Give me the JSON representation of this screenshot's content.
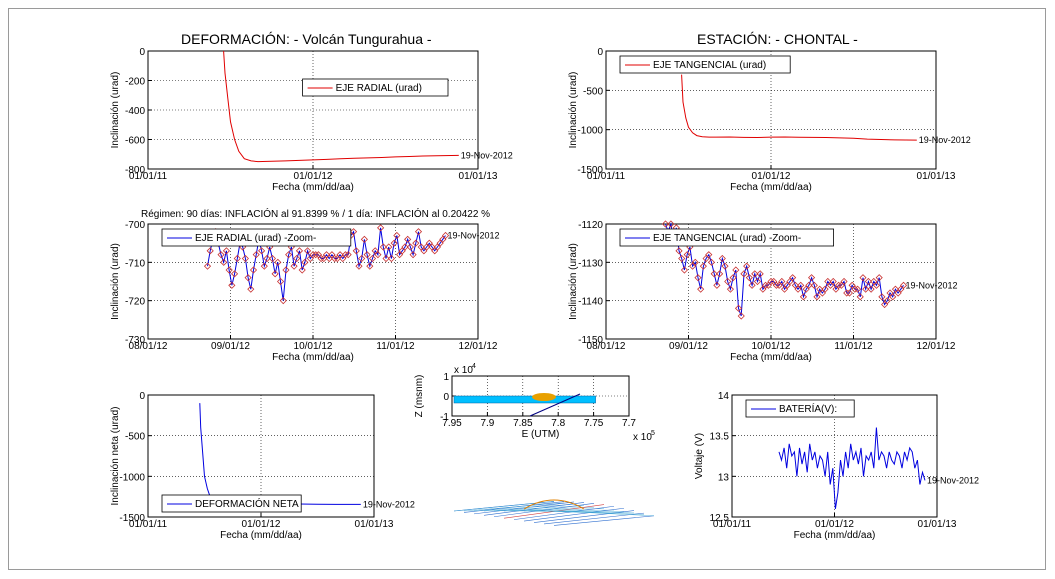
{
  "titles": {
    "left": "DEFORMACIÓN: - Volcán Tungurahua -",
    "right": "ESTACIÓN: - CHONTAL -",
    "regimen": "Régimen: 90 días: INFLACIÓN al 91.8399 % / 1 día: INFLACIÓN al 0.20422 %"
  },
  "colors": {
    "red": "#e00000",
    "blue": "#0000e0",
    "marker": "#c83232",
    "grid": "#000000"
  },
  "chart_data": [
    {
      "id": "radial",
      "type": "line",
      "xlabel": "Fecha (mm/dd/aa)",
      "ylabel": "Inclinación (urad)",
      "xticks": [
        "01/01/11",
        "01/01/12",
        "01/01/13"
      ],
      "yticks": [
        0,
        -200,
        -400,
        -600,
        -800
      ],
      "xlim": [
        0,
        24
      ],
      "ylim": [
        -800,
        0
      ],
      "grid": true,
      "legend": "EJE RADIAL (urad)",
      "legend_position": "top-right",
      "end_label": "19-Nov-2012",
      "series": [
        {
          "color": "red",
          "x": [
            5.5,
            5.6,
            5.8,
            6.0,
            6.3,
            6.6,
            7.0,
            7.5,
            8.0,
            9,
            10,
            11,
            12,
            13,
            14,
            15,
            16,
            17,
            18,
            19,
            20,
            21,
            22.6
          ],
          "y": [
            0,
            -150,
            -320,
            -480,
            -600,
            -680,
            -730,
            -745,
            -750,
            -748,
            -745,
            -742,
            -738,
            -735,
            -730,
            -727,
            -725,
            -722,
            -718,
            -715,
            -712,
            -710,
            -708
          ]
        }
      ]
    },
    {
      "id": "tangencial",
      "type": "line",
      "xlabel": "Fecha (mm/dd/aa)",
      "ylabel": "Inclinación (urad)",
      "xticks": [
        "01/01/11",
        "01/01/12",
        "01/01/13"
      ],
      "yticks": [
        0,
        -500,
        -1000,
        -1500
      ],
      "xlim": [
        0,
        24
      ],
      "ylim": [
        -1500,
        0
      ],
      "grid": true,
      "legend": "EJE TANGENCIAL (urad)",
      "legend_position": "top-left",
      "end_label": "19-Nov-2012",
      "series": [
        {
          "color": "red",
          "x": [
            5.5,
            5.6,
            5.8,
            6.0,
            6.3,
            6.6,
            7.0,
            7.5,
            8.0,
            9,
            10,
            11,
            12,
            13,
            14,
            15,
            16,
            17,
            18,
            19,
            20,
            21,
            22.6
          ],
          "y": [
            -300,
            -650,
            -850,
            -970,
            -1040,
            -1075,
            -1090,
            -1095,
            -1095,
            -1093,
            -1098,
            -1100,
            -1095,
            -1093,
            -1097,
            -1098,
            -1100,
            -1105,
            -1110,
            -1120,
            -1125,
            -1130,
            -1132
          ]
        }
      ]
    },
    {
      "id": "radial_zoom",
      "type": "line",
      "xlabel": "Fecha (mm/dd/aa)",
      "ylabel": "Inclinación (urad)",
      "xticks": [
        "08/01/12",
        "09/01/12",
        "10/01/12",
        "11/01/12",
        "12/01/12"
      ],
      "yticks": [
        -700,
        -710,
        -720,
        -730
      ],
      "xlim": [
        0,
        122
      ],
      "ylim": [
        -730,
        -700
      ],
      "grid": true,
      "legend": "EJE RADIAL (urad) -Zoom-",
      "legend_position": "top-left",
      "end_label": "19-Nov-2012",
      "series": [
        {
          "color": "blue",
          "markers": true,
          "x": [
            22,
            23,
            24,
            25,
            26,
            27,
            28,
            29,
            30,
            31,
            32,
            33,
            34,
            35,
            36,
            37,
            38,
            39,
            40,
            41,
            42,
            43,
            44,
            45,
            46,
            47,
            48,
            49,
            50,
            51,
            52,
            53,
            54,
            55,
            56,
            57,
            58,
            59,
            60,
            61,
            62,
            63,
            64,
            65,
            66,
            67,
            68,
            69,
            70,
            71,
            72,
            73,
            74,
            75,
            76,
            77,
            78,
            79,
            80,
            81,
            82,
            83,
            84,
            85,
            86,
            87,
            88,
            89,
            90,
            91,
            92,
            93,
            94,
            95,
            96,
            97,
            98,
            99,
            100,
            101,
            102,
            103,
            104,
            105,
            106,
            107,
            108,
            109,
            110
          ],
          "y": [
            -711,
            -707,
            -704,
            -702,
            -705,
            -708,
            -710,
            -707,
            -712,
            -716,
            -713,
            -709,
            -705,
            -706,
            -709,
            -714,
            -717,
            -712,
            -708,
            -704,
            -707,
            -711,
            -709,
            -706,
            -709,
            -713,
            -710,
            -715,
            -720,
            -712,
            -708,
            -706,
            -711,
            -709,
            -707,
            -712,
            -710,
            -707,
            -709,
            -708,
            -708,
            -708,
            -709,
            -709,
            -708,
            -709,
            -708,
            -709,
            -709,
            -708,
            -709,
            -708,
            -708,
            -703,
            -702,
            -707,
            -711,
            -709,
            -704,
            -708,
            -711,
            -709,
            -707,
            -708,
            -701,
            -706,
            -709,
            -706,
            -709,
            -705,
            -703,
            -708,
            -707,
            -706,
            -704,
            -706,
            -708,
            -705,
            -702,
            -706,
            -707,
            -706,
            -705,
            -706,
            -707,
            -706,
            -705,
            -704,
            -703
          ]
        }
      ]
    },
    {
      "id": "tangencial_zoom",
      "type": "line",
      "xlabel": "Fecha (mm/dd/aa)",
      "ylabel": "Inclinación (urad)",
      "xticks": [
        "08/01/12",
        "09/01/12",
        "10/01/12",
        "11/01/12",
        "12/01/12"
      ],
      "yticks": [
        -1120,
        -1130,
        -1140,
        -1150
      ],
      "xlim": [
        0,
        122
      ],
      "ylim": [
        -1150,
        -1120
      ],
      "grid": true,
      "legend": "EJE TANGENCIAL (urad) -Zoom-",
      "legend_position": "top-left",
      "end_label": "19-Nov-2012",
      "series": [
        {
          "color": "blue",
          "markers": true,
          "x": [
            22,
            23,
            24,
            25,
            26,
            27,
            28,
            29,
            30,
            31,
            32,
            33,
            34,
            35,
            36,
            37,
            38,
            39,
            40,
            41,
            42,
            43,
            44,
            45,
            46,
            47,
            48,
            49,
            50,
            51,
            52,
            53,
            54,
            55,
            56,
            57,
            58,
            59,
            60,
            61,
            62,
            63,
            64,
            65,
            66,
            67,
            68,
            69,
            70,
            71,
            72,
            73,
            74,
            75,
            76,
            77,
            78,
            79,
            80,
            81,
            82,
            83,
            84,
            85,
            86,
            87,
            88,
            89,
            90,
            91,
            92,
            93,
            94,
            95,
            96,
            97,
            98,
            99,
            100,
            101,
            102,
            103,
            104,
            105,
            106,
            107,
            108,
            109,
            110
          ],
          "y": [
            -1120,
            -1122,
            -1120,
            -1124,
            -1121,
            -1127,
            -1129,
            -1132,
            -1128,
            -1126,
            -1131,
            -1130,
            -1134,
            -1137,
            -1131,
            -1129,
            -1128,
            -1130,
            -1133,
            -1136,
            -1133,
            -1129,
            -1131,
            -1135,
            -1137,
            -1134,
            -1132,
            -1142,
            -1144,
            -1133,
            -1131,
            -1134,
            -1136,
            -1133,
            -1135,
            -1133,
            -1137,
            -1136,
            -1136,
            -1135,
            -1135,
            -1136,
            -1136,
            -1135,
            -1137,
            -1136,
            -1135,
            -1134,
            -1136,
            -1137,
            -1136,
            -1139,
            -1137,
            -1136,
            -1134,
            -1136,
            -1139,
            -1137,
            -1138,
            -1137,
            -1135,
            -1136,
            -1135,
            -1137,
            -1136,
            -1136,
            -1135,
            -1138,
            -1138,
            -1136,
            -1137,
            -1137,
            -1139,
            -1134,
            -1137,
            -1135,
            -1137,
            -1135,
            -1136,
            -1134,
            -1139,
            -1141,
            -1140,
            -1138,
            -1139,
            -1137,
            -1138,
            -1137,
            -1136
          ]
        }
      ]
    },
    {
      "id": "deformacion_neta",
      "type": "line",
      "xlabel": "Fecha (mm/dd/aa)",
      "ylabel": "Inclinación neta (urad)",
      "xticks": [
        "01/01/11",
        "01/01/12",
        "01/01/13"
      ],
      "yticks": [
        0,
        -500,
        -1000,
        -1500
      ],
      "xlim": [
        0,
        24
      ],
      "ylim": [
        -1500,
        0
      ],
      "grid": true,
      "legend": "DEFORMACIÓN NETA",
      "legend_position": "bottom-left",
      "end_label": "19-Nov-2012",
      "series": [
        {
          "color": "blue",
          "x": [
            5.5,
            5.6,
            5.8,
            6.0,
            6.3,
            6.6,
            7.0,
            7.5,
            8.0,
            9,
            10,
            12,
            14,
            16,
            18,
            20,
            22.6
          ],
          "y": [
            -100,
            -400,
            -700,
            -1000,
            -1150,
            -1250,
            -1300,
            -1320,
            -1330,
            -1335,
            -1340,
            -1340,
            -1342,
            -1340,
            -1343,
            -1345,
            -1345
          ]
        }
      ]
    },
    {
      "id": "bateria",
      "type": "line",
      "xlabel": "Fecha (mm/dd/aa)",
      "ylabel": "Voltaje (V)",
      "xticks": [
        "01/01/11",
        "01/01/12",
        "01/01/13"
      ],
      "yticks": [
        14,
        13.5,
        13,
        12.5
      ],
      "xlim": [
        0,
        24
      ],
      "ylim": [
        12.5,
        14
      ],
      "grid": true,
      "legend": "BATERÍA(V):",
      "legend_position": "top-left",
      "end_label": "19-Nov-2012",
      "series": [
        {
          "color": "blue",
          "x": [
            5.5,
            5.8,
            6.1,
            6.4,
            6.7,
            7.0,
            7.3,
            7.6,
            7.9,
            8.2,
            8.5,
            8.8,
            9.1,
            9.4,
            9.7,
            10.0,
            10.3,
            10.6,
            10.9,
            11.2,
            11.5,
            11.8,
            12.1,
            12.4,
            12.7,
            13.0,
            13.3,
            13.6,
            13.9,
            14.2,
            14.5,
            14.8,
            15.1,
            15.4,
            15.7,
            16.0,
            16.3,
            16.6,
            16.9,
            17.2,
            17.5,
            17.8,
            18.1,
            18.4,
            18.7,
            19.0,
            19.3,
            19.6,
            19.9,
            20.2,
            20.5,
            20.8,
            21.1,
            21.4,
            21.7,
            22.0,
            22.3,
            22.6
          ],
          "y": [
            13.3,
            13.2,
            13.35,
            13.1,
            13.4,
            13.25,
            13.3,
            13.0,
            13.35,
            13.15,
            13.3,
            13.05,
            13.4,
            13.2,
            13.3,
            13.1,
            13.25,
            13.2,
            13.0,
            13.3,
            12.9,
            13.1,
            12.6,
            12.8,
            13.2,
            13.0,
            13.3,
            13.1,
            13.4,
            13.2,
            13.3,
            13.15,
            13.35,
            13.0,
            13.25,
            13.2,
            13.3,
            13.1,
            13.6,
            13.2,
            13.3,
            13.25,
            13.1,
            13.3,
            13.2,
            13.15,
            13.3,
            13.25,
            13.1,
            13.3,
            13.2,
            13.35,
            13.3,
            13.1,
            13.2,
            12.9,
            13.05,
            12.95
          ]
        }
      ]
    },
    {
      "id": "perfil",
      "type": "line",
      "xlabel": "E (UTM)",
      "ylabel": "Z (msnm)",
      "xticks": [
        "7.95",
        "7.9",
        "7.85",
        "7.8",
        "7.75",
        "7.7"
      ],
      "yticks": [
        1,
        0,
        -1
      ],
      "xlim": [
        0,
        5
      ],
      "ylim": [
        -1,
        1
      ],
      "grid": true,
      "x_exponent": "x 10",
      "x_exponent_power": "5",
      "y_exponent": "x 10",
      "y_exponent_power": "4",
      "series": [
        {
          "color": "band",
          "x": [
            0,
            4
          ],
          "y": [
            0.1,
            0.1
          ]
        }
      ]
    }
  ]
}
